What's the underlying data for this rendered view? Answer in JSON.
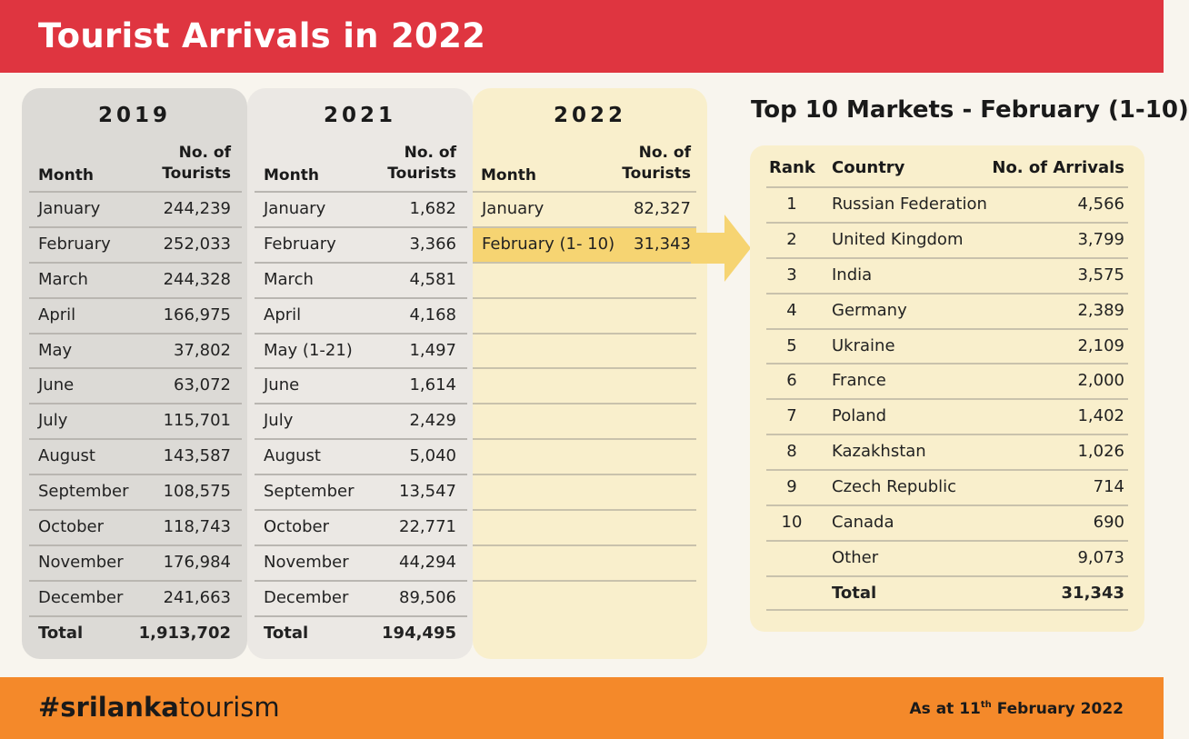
{
  "title": "Tourist Arrivals in 2022",
  "col_month": "Month",
  "col_tourists_line1": "No. of",
  "col_tourists_line2": "Tourists",
  "y2019": {
    "year": "2019",
    "rows": [
      {
        "month": "January",
        "value": "244,239"
      },
      {
        "month": "February",
        "value": "252,033"
      },
      {
        "month": "March",
        "value": "244,328"
      },
      {
        "month": "April",
        "value": "166,975"
      },
      {
        "month": "May",
        "value": "37,802"
      },
      {
        "month": "June",
        "value": "63,072"
      },
      {
        "month": "July",
        "value": "115,701"
      },
      {
        "month": "August",
        "value": "143,587"
      },
      {
        "month": "September",
        "value": "108,575"
      },
      {
        "month": "October",
        "value": "118,743"
      },
      {
        "month": "November",
        "value": "176,984"
      },
      {
        "month": "December",
        "value": "241,663"
      }
    ],
    "total_label": "Total",
    "total_value": "1,913,702"
  },
  "y2021": {
    "year": "2021",
    "rows": [
      {
        "month": "January",
        "value": "1,682"
      },
      {
        "month": "February",
        "value": "3,366"
      },
      {
        "month": "March",
        "value": "4,581"
      },
      {
        "month": "April",
        "value": "4,168"
      },
      {
        "month": "May (1-21)",
        "value": "1,497"
      },
      {
        "month": "June",
        "value": "1,614"
      },
      {
        "month": "July",
        "value": "2,429"
      },
      {
        "month": "August",
        "value": "5,040"
      },
      {
        "month": "September",
        "value": "13,547"
      },
      {
        "month": "October",
        "value": "22,771"
      },
      {
        "month": "November",
        "value": "44,294"
      },
      {
        "month": "December",
        "value": "89,506"
      }
    ],
    "total_label": "Total",
    "total_value": "194,495"
  },
  "y2022": {
    "year": "2022",
    "rows": [
      {
        "month": "January",
        "value": "82,327"
      },
      {
        "month": "February (1- 10)",
        "value": "31,343"
      }
    ]
  },
  "markets": {
    "title": "Top 10 Markets - February (1-10)",
    "col_rank": "Rank",
    "col_country": "Country",
    "col_arrivals": "No. of Arrivals",
    "rows": [
      {
        "rank": "1",
        "country": "Russian Federation",
        "arrivals": "4,566"
      },
      {
        "rank": "2",
        "country": "United Kingdom",
        "arrivals": "3,799"
      },
      {
        "rank": "3",
        "country": "India",
        "arrivals": "3,575"
      },
      {
        "rank": "4",
        "country": "Germany",
        "arrivals": "2,389"
      },
      {
        "rank": "5",
        "country": "Ukraine",
        "arrivals": "2,109"
      },
      {
        "rank": "6",
        "country": "France",
        "arrivals": "2,000"
      },
      {
        "rank": "7",
        "country": "Poland",
        "arrivals": "1,402"
      },
      {
        "rank": "8",
        "country": "Kazakhstan",
        "arrivals": "1,026"
      },
      {
        "rank": "9",
        "country": "Czech Republic",
        "arrivals": "714"
      },
      {
        "rank": "10",
        "country": "Canada",
        "arrivals": "690"
      },
      {
        "rank": "",
        "country": "Other",
        "arrivals": "9,073"
      }
    ],
    "total_label": "Total",
    "total_value": "31,343"
  },
  "footer": {
    "hashtag_bold": "#srilanka",
    "hashtag_rest": "tourism",
    "asat_prefix": "As at 11",
    "asat_sup": "th",
    "asat_suffix": " February 2022"
  },
  "colors": {
    "header_red": "#df3540",
    "footer_orange": "#f4892a",
    "highlight_yellow": "#f6d472",
    "panel_cream": "#f9efcc"
  },
  "icons": [
    "arrow-right-icon"
  ]
}
